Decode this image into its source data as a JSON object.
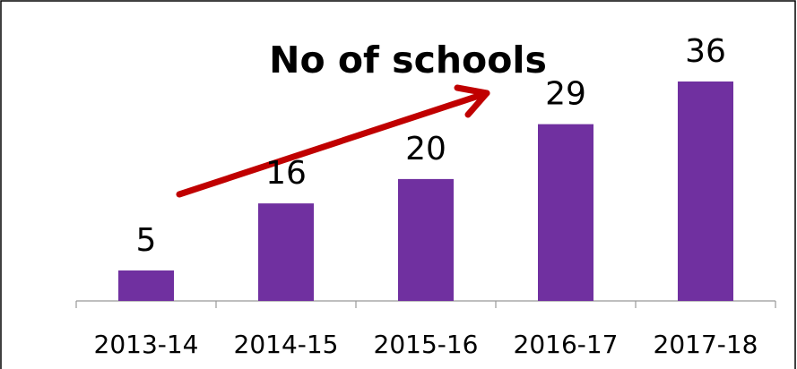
{
  "chart_data": {
    "type": "bar",
    "title": "No of schools",
    "categories": [
      "2013-14",
      "2014-15",
      "2015-16",
      "2016-17",
      "2017-18"
    ],
    "values": [
      5,
      16,
      20,
      29,
      36
    ],
    "color": "#7030a0",
    "data_labels": true
  }
}
